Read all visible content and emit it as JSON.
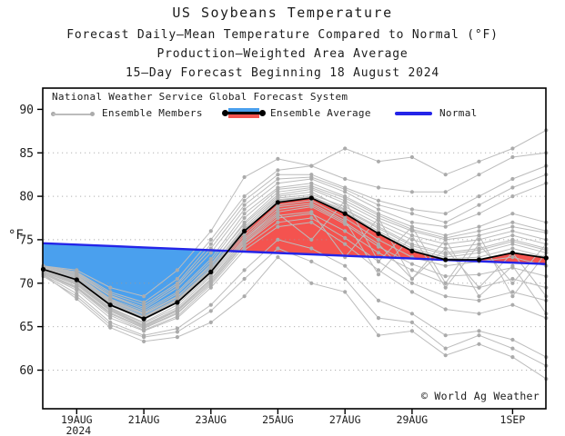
{
  "header": {
    "title": "US Soybeans Temperature",
    "subtitle1": "Forecast Daily–Mean Temperature Compared to Normal (°F)",
    "subtitle2": "Production–Weighted Area Average",
    "subtitle3": "15–Day Forecast Beginning 18 August 2024"
  },
  "legend": {
    "source": "National Weather Service Global Forecast System",
    "members_label": "Ensemble Members",
    "average_label": "Ensemble Average",
    "normal_label": "Normal"
  },
  "watermark": "© World Ag Weather",
  "colors": {
    "above_fill": "#f4534f",
    "below_fill": "#4aa0ee",
    "normal_line": "#2424e8",
    "average_line": "#000000",
    "member_line": "#bcbcbc",
    "member_marker": "#ababab",
    "grid": "#999999",
    "frame": "#000000"
  },
  "chart_data": {
    "type": "line",
    "title": "US Soybeans Temperature",
    "ylabel": "°F",
    "ylim": [
      55.5,
      92.5
    ],
    "yticks": [
      60,
      65,
      70,
      75,
      80,
      85,
      90
    ],
    "grid_ticks": [
      60,
      65,
      70,
      75,
      80,
      85
    ],
    "grid": "dotted-horizontal",
    "legend_position": "top-inside",
    "dates": [
      "18AUG",
      "19AUG",
      "20AUG",
      "21AUG",
      "22AUG",
      "23AUG",
      "24AUG",
      "25AUG",
      "26AUG",
      "27AUG",
      "28AUG",
      "29AUG",
      "30AUG",
      "31AUG",
      "1SEP",
      "2SEP"
    ],
    "xtick_positions": [
      1,
      3,
      5,
      7,
      9,
      11,
      14
    ],
    "xtick_labels": [
      "19AUG",
      "21AUG",
      "23AUG",
      "25AUG",
      "27AUG",
      "29AUG",
      "1SEP"
    ],
    "xtick_sublabels": [
      "2024",
      "",
      "",
      "",
      "",
      "",
      ""
    ],
    "normal": [
      74.6,
      74.44,
      74.28,
      74.12,
      73.96,
      73.8,
      73.64,
      73.48,
      73.32,
      73.16,
      73.0,
      72.84,
      72.68,
      72.52,
      72.36,
      72.2
    ],
    "ensemble_average": [
      71.6,
      70.4,
      67.5,
      65.9,
      67.8,
      71.3,
      76.0,
      79.3,
      79.8,
      78.0,
      75.7,
      73.7,
      72.7,
      72.7,
      73.5,
      72.9
    ],
    "ensemble_members": [
      [
        71.8,
        70.8,
        68.0,
        66.5,
        68.5,
        72.0,
        77.0,
        80.5,
        81.0,
        79.5,
        77.5,
        76.0,
        75.0,
        75.5,
        76.5,
        75.8
      ],
      [
        71.5,
        70.2,
        67.2,
        65.5,
        67.5,
        71.0,
        75.5,
        79.0,
        79.5,
        77.5,
        75.0,
        73.0,
        72.0,
        72.5,
        73.0,
        72.0
      ],
      [
        71.9,
        71.0,
        68.5,
        67.0,
        69.5,
        73.5,
        78.5,
        81.5,
        82.0,
        80.5,
        78.5,
        77.0,
        76.5,
        78.0,
        80.0,
        81.5
      ],
      [
        71.2,
        69.5,
        66.5,
        64.8,
        66.5,
        70.0,
        74.5,
        77.5,
        78.0,
        76.0,
        73.5,
        71.5,
        70.0,
        69.5,
        70.5,
        69.5
      ],
      [
        72.0,
        71.5,
        69.5,
        68.5,
        71.5,
        76.0,
        82.2,
        84.3,
        83.5,
        85.5,
        84.0,
        84.5,
        82.5,
        84.0,
        85.5,
        87.6
      ],
      [
        71.0,
        68.2,
        64.9,
        63.3,
        63.8,
        65.5,
        68.5,
        73.0,
        70.0,
        69.0,
        64.0,
        64.5,
        61.7,
        63.0,
        61.5,
        59.0
      ],
      [
        71.7,
        70.5,
        67.8,
        66.2,
        68.2,
        71.8,
        76.5,
        80.0,
        80.5,
        78.5,
        76.5,
        74.5,
        73.5,
        74.0,
        75.0,
        74.0
      ],
      [
        71.4,
        70.0,
        67.0,
        65.2,
        67.0,
        70.5,
        75.0,
        78.5,
        79.0,
        77.0,
        74.5,
        70.5,
        74.0,
        69.5,
        73.5,
        68.5
      ],
      [
        71.8,
        70.9,
        68.2,
        66.8,
        69.0,
        72.8,
        78.0,
        81.0,
        81.5,
        80.0,
        78.0,
        76.5,
        75.5,
        76.5,
        78.0,
        77.0
      ],
      [
        71.3,
        69.8,
        66.8,
        65.0,
        66.8,
        70.2,
        74.8,
        78.0,
        75.0,
        79.5,
        72.5,
        76.5,
        70.0,
        75.5,
        68.5,
        73.5
      ],
      [
        71.6,
        70.6,
        67.6,
        66.0,
        68.0,
        71.5,
        76.2,
        79.8,
        80.2,
        78.8,
        76.8,
        75.0,
        74.0,
        74.5,
        75.5,
        74.5
      ],
      [
        71.5,
        70.3,
        67.4,
        65.8,
        67.8,
        71.2,
        75.8,
        79.5,
        80.0,
        78.2,
        76.0,
        74.0,
        73.0,
        73.5,
        74.5,
        73.5
      ],
      [
        71.9,
        71.2,
        68.8,
        67.5,
        70.0,
        74.5,
        79.5,
        82.5,
        82.5,
        81.0,
        79.5,
        78.5,
        78.0,
        80.0,
        82.0,
        83.5
      ],
      [
        71.1,
        69.2,
        66.0,
        64.5,
        66.0,
        69.5,
        73.8,
        76.5,
        77.0,
        74.5,
        71.5,
        69.0,
        67.0,
        66.5,
        67.5,
        66.0
      ],
      [
        71.7,
        70.7,
        67.9,
        66.4,
        68.4,
        72.2,
        76.8,
        80.2,
        80.8,
        79.2,
        77.2,
        75.5,
        74.5,
        75.0,
        76.0,
        75.0
      ],
      [
        71.4,
        70.1,
        67.1,
        65.4,
        67.2,
        70.8,
        75.2,
        78.8,
        79.2,
        77.2,
        71.0,
        75.5,
        69.5,
        74.5,
        70.0,
        74.5
      ],
      [
        72.0,
        71.3,
        69.0,
        67.8,
        70.5,
        75.0,
        80.0,
        83.0,
        83.5,
        82.0,
        81.0,
        80.5,
        80.5,
        82.5,
        84.5,
        85.0
      ],
      [
        71.0,
        68.8,
        65.5,
        64.0,
        64.8,
        67.5,
        71.5,
        75.0,
        74.0,
        72.0,
        68.0,
        66.5,
        64.0,
        64.5,
        63.5,
        61.5
      ],
      [
        71.6,
        70.5,
        67.7,
        66.1,
        68.1,
        71.6,
        76.3,
        79.6,
        80.0,
        78.4,
        76.3,
        74.3,
        73.3,
        73.8,
        74.8,
        73.8
      ],
      [
        71.3,
        69.9,
        66.9,
        65.1,
        66.9,
        70.4,
        75.0,
        78.2,
        78.8,
        76.8,
        74.2,
        72.2,
        70.8,
        71.0,
        71.8,
        70.8
      ],
      [
        71.8,
        70.8,
        68.1,
        66.6,
        68.8,
        72.5,
        77.5,
        80.8,
        81.2,
        79.8,
        77.8,
        76.2,
        75.2,
        76.0,
        77.0,
        76.0
      ],
      [
        71.2,
        69.6,
        66.6,
        64.9,
        66.6,
        70.0,
        74.6,
        77.8,
        78.2,
        73.0,
        77.5,
        70.5,
        75.0,
        68.5,
        72.0,
        66.5
      ],
      [
        71.5,
        70.4,
        67.5,
        65.9,
        67.9,
        71.4,
        76.0,
        79.4,
        79.9,
        78.1,
        75.8,
        73.8,
        72.8,
        73.0,
        74.0,
        73.0
      ],
      [
        70.8,
        68.5,
        65.2,
        63.8,
        64.4,
        66.8,
        70.5,
        74.0,
        72.5,
        70.5,
        66.0,
        65.5,
        62.5,
        64.0,
        62.5,
        60.5
      ],
      [
        71.9,
        71.1,
        68.6,
        67.2,
        69.8,
        74.0,
        79.0,
        82.0,
        82.2,
        80.8,
        79.0,
        78.0,
        77.0,
        79.0,
        81.0,
        82.5
      ],
      [
        71.1,
        69.4,
        66.3,
        64.6,
        66.2,
        69.8,
        74.2,
        77.0,
        77.5,
        75.2,
        72.5,
        70.0,
        68.5,
        68.0,
        69.0,
        68.0
      ]
    ]
  }
}
